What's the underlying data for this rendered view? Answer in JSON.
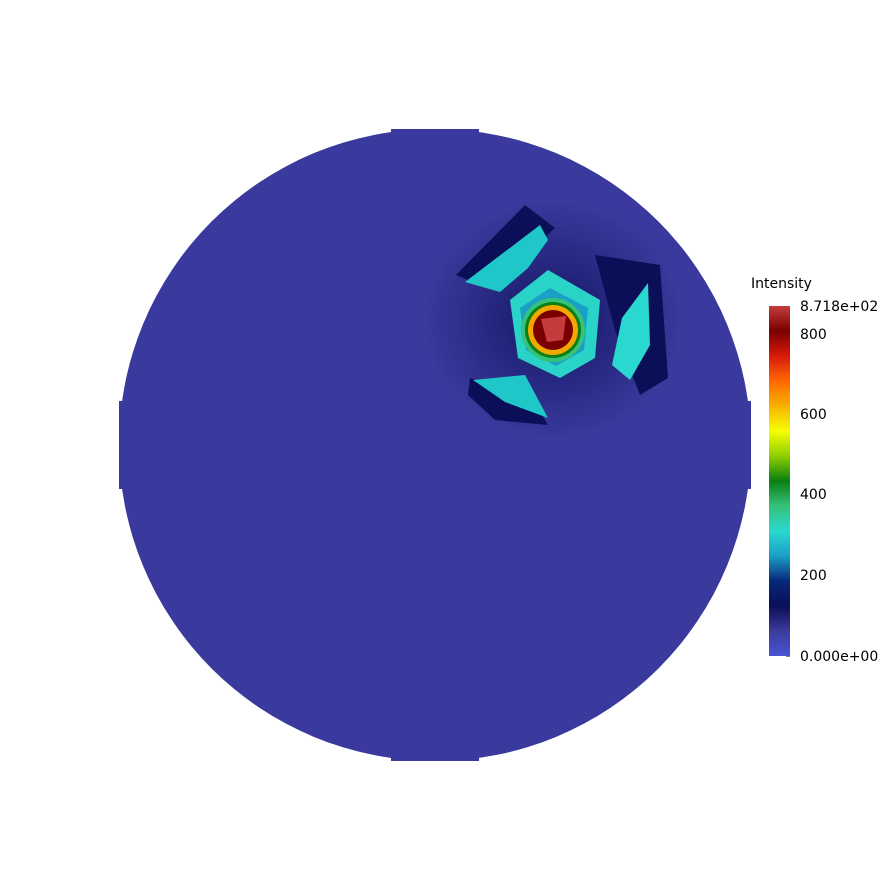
{
  "colorbar": {
    "title": "Intensity",
    "max_label": "8.718e+02",
    "min_label": "0.000e+00",
    "range": [
      0,
      871.8
    ],
    "ticks": [
      {
        "value": 800,
        "label": "800"
      },
      {
        "value": 600,
        "label": "600"
      },
      {
        "value": 400,
        "label": "400"
      },
      {
        "value": 200,
        "label": "200"
      }
    ],
    "colormap": [
      "#4754d6",
      "#3b3b9c",
      "#0b0f57",
      "#08287b",
      "#1a9fc7",
      "#2ad8d0",
      "#35c27a",
      "#0a7f13",
      "#8fce00",
      "#f6ff00",
      "#f8b200",
      "#ff6800",
      "#d81a0b",
      "#7a0000",
      "#c43c3c"
    ]
  },
  "field": {
    "background_color": "#3a399d",
    "hotspot_color": "#8d0d0d"
  }
}
